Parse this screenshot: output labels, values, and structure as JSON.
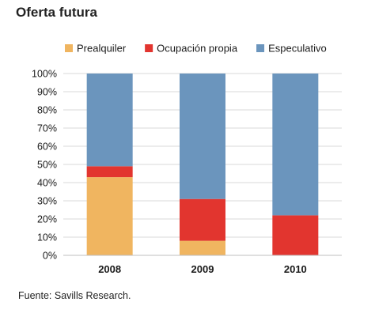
{
  "title": "Oferta futura",
  "source": "Fuente: Savills Research.",
  "chart_data": {
    "type": "bar",
    "stacked": true,
    "categories": [
      "2008",
      "2009",
      "2010"
    ],
    "series": [
      {
        "name": "Prealquiler",
        "color": "#f0b560",
        "values": [
          43,
          8,
          0
        ]
      },
      {
        "name": "Ocupación propia",
        "color": "#e2352f",
        "values": [
          6,
          23,
          22
        ]
      },
      {
        "name": "Especulativo",
        "color": "#6b95bd",
        "values": [
          51,
          69,
          78
        ]
      }
    ],
    "ylim": [
      0,
      100
    ],
    "yticks": [
      "0%",
      "10%",
      "20%",
      "30%",
      "40%",
      "50%",
      "60%",
      "70%",
      "80%",
      "90%",
      "100%"
    ],
    "grid": true,
    "legend_position": "top"
  }
}
